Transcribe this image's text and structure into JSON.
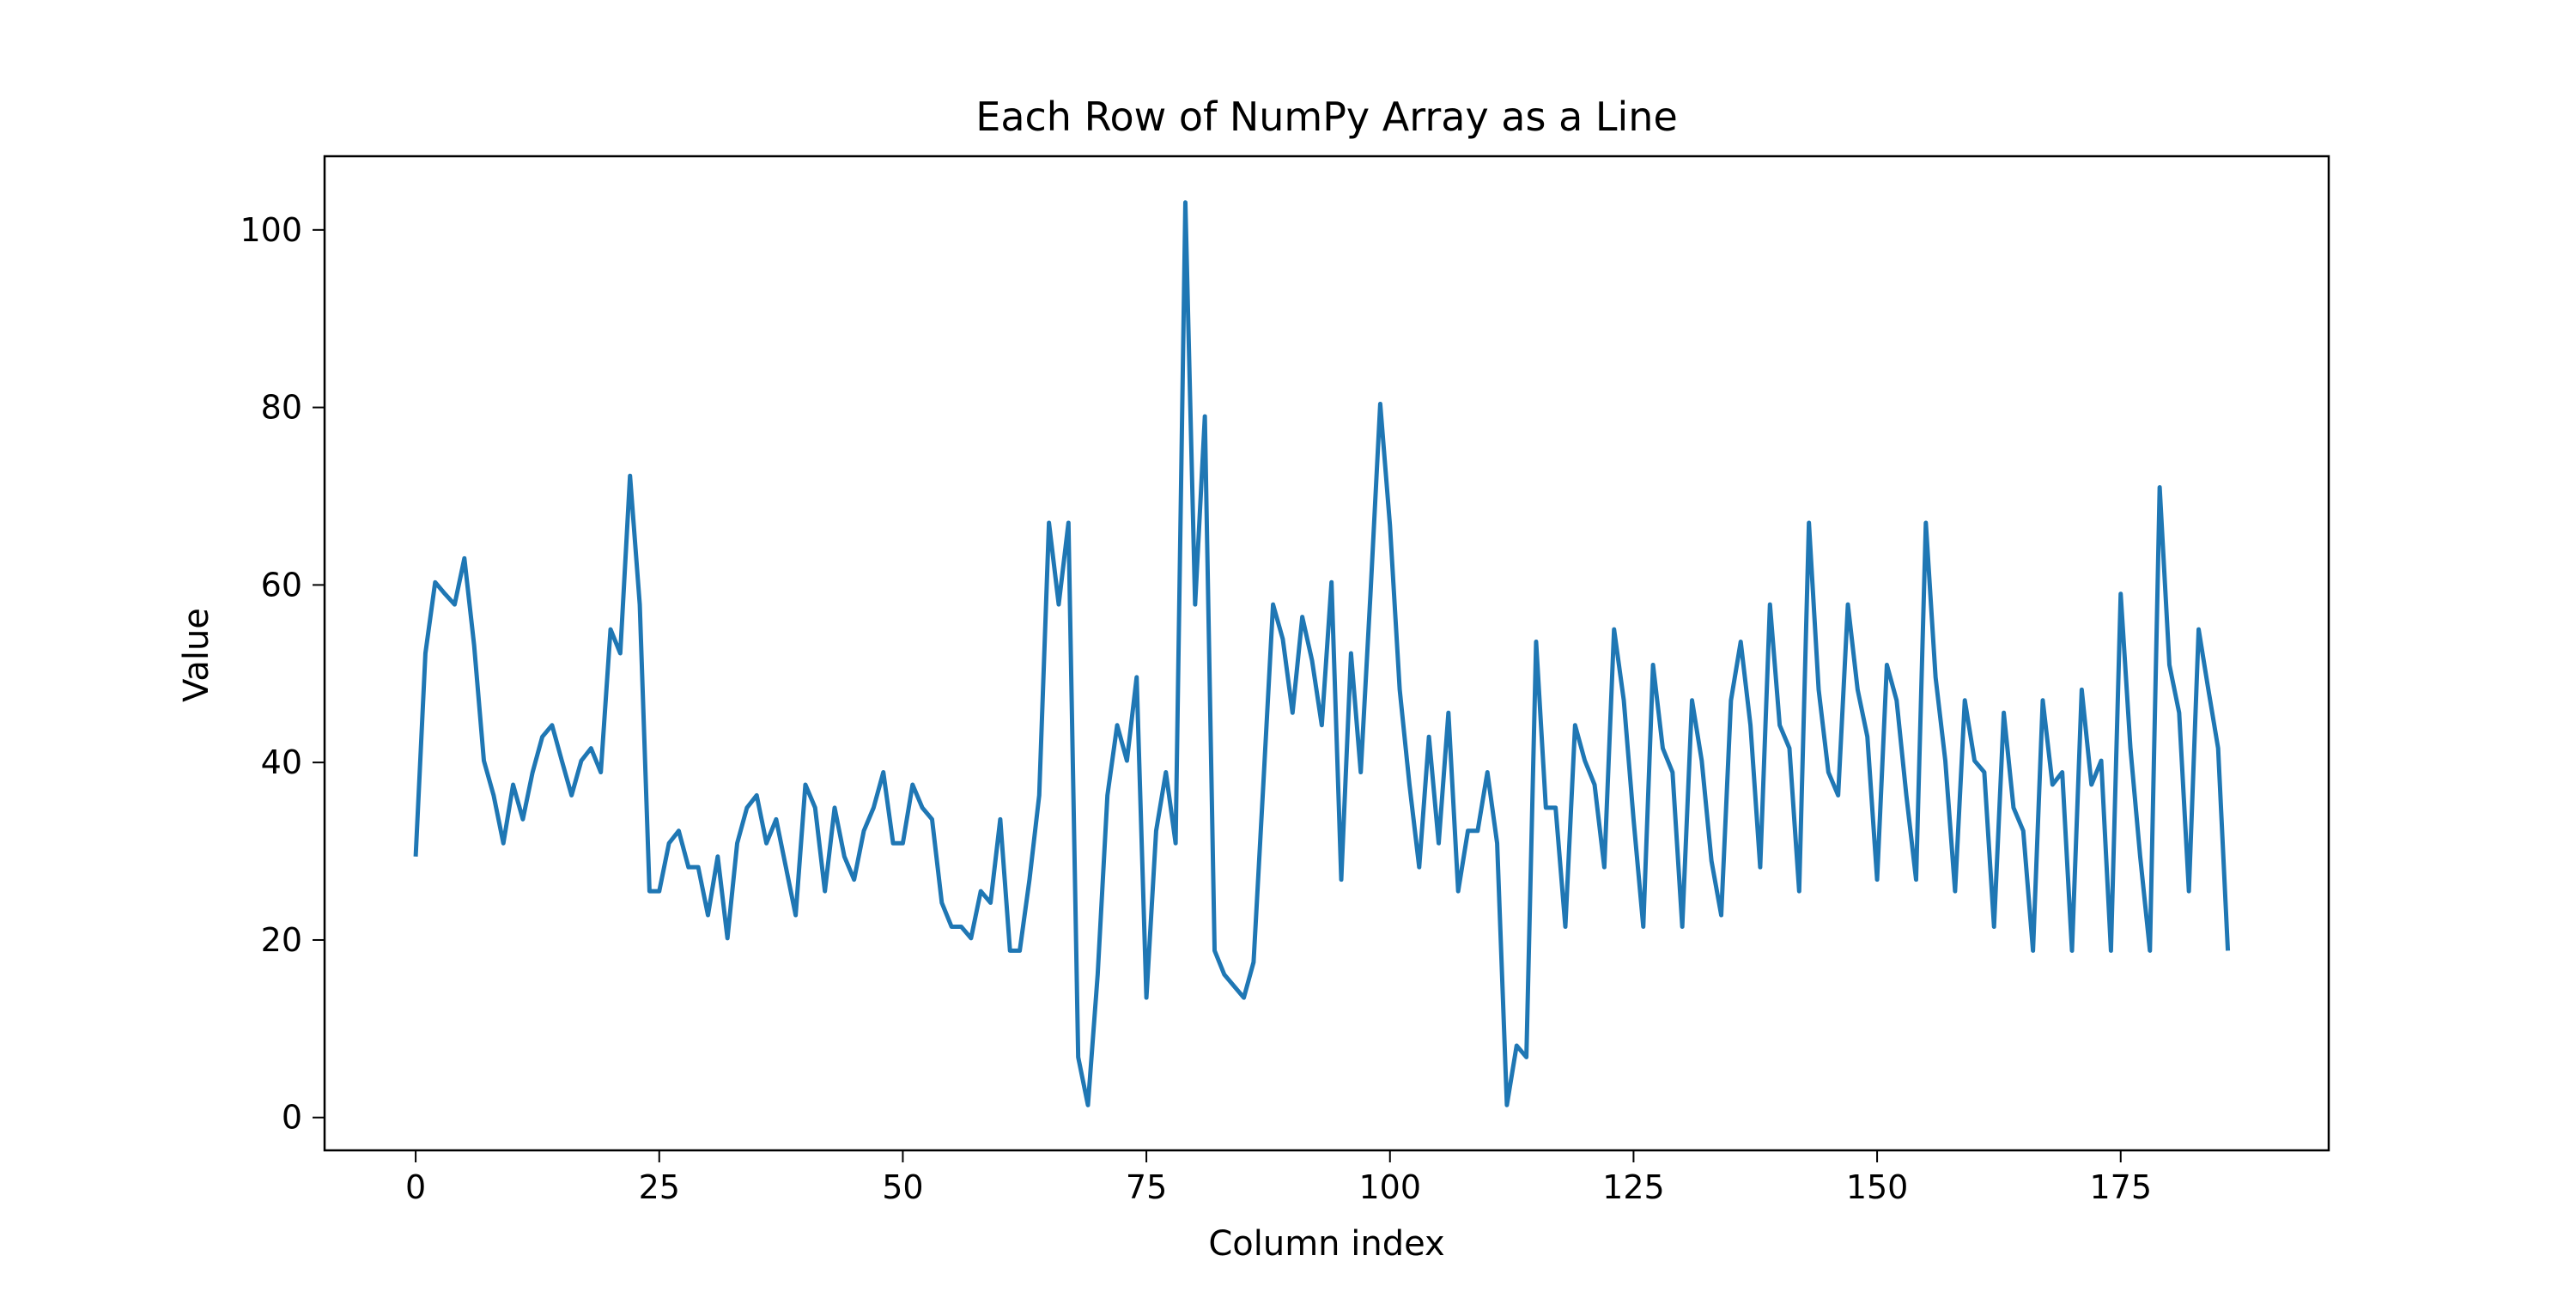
{
  "chart_data": {
    "type": "line",
    "title": "Each Row of NumPy Array as a Line",
    "xlabel": "Column index",
    "ylabel": "Value",
    "xlim": [
      -9.35,
      196.35
    ],
    "ylim": [
      -3.7,
      108.3
    ],
    "xticks": [
      0,
      25,
      50,
      75,
      100,
      125,
      150,
      175
    ],
    "yticks": [
      0,
      20,
      40,
      60,
      80,
      100
    ],
    "grid": false,
    "legend": "none",
    "colors": {
      "series": "#1f77b4",
      "axes": "#000000",
      "background": "#ffffff"
    },
    "series": [
      {
        "x": [
          0,
          1,
          2,
          3,
          4,
          5,
          6,
          7,
          8,
          9,
          10,
          11,
          12,
          13,
          14,
          15,
          16,
          17,
          18,
          19,
          20,
          21,
          22,
          23,
          24,
          25,
          26,
          27,
          28,
          29,
          30,
          31,
          32,
          33,
          34,
          35,
          36,
          37,
          38,
          39,
          40,
          41,
          42,
          43,
          44,
          45,
          46,
          47,
          48,
          49,
          50,
          51,
          52,
          53,
          54,
          55,
          56,
          57,
          58,
          59,
          60,
          61,
          62,
          63,
          64,
          65,
          66,
          67,
          68,
          69,
          70,
          71,
          72,
          73,
          74,
          75,
          76,
          77,
          78,
          79,
          80,
          81,
          82,
          83,
          84,
          85,
          86,
          87,
          88,
          89,
          90,
          91,
          92,
          93,
          94,
          95,
          96,
          97,
          98,
          99,
          100,
          101,
          102,
          103,
          104,
          105,
          106,
          107,
          108,
          109,
          110,
          111,
          112,
          113,
          114,
          115,
          116,
          117,
          118,
          119,
          120,
          121,
          122,
          123,
          124,
          125,
          126,
          127,
          128,
          129,
          130,
          131,
          132,
          133,
          134,
          135,
          136,
          137,
          138,
          139,
          140,
          141,
          142,
          143,
          144,
          145,
          146,
          147,
          148,
          149,
          150,
          151,
          152,
          153,
          154,
          155,
          156,
          157,
          158,
          159,
          160,
          161,
          162,
          163,
          164,
          165,
          166,
          167,
          168,
          169,
          170,
          171,
          172,
          173,
          174,
          175,
          176,
          177,
          178,
          179,
          180,
          181,
          182,
          183,
          184,
          185,
          186
        ],
        "values": [
          29.4,
          52.3,
          60.3,
          59.0,
          57.8,
          63.0,
          53.2,
          40.2,
          36.3,
          30.9,
          37.5,
          33.6,
          38.9,
          42.9,
          44.2,
          40.2,
          36.3,
          40.2,
          41.6,
          38.9,
          55.0,
          52.3,
          72.3,
          57.8,
          25.5,
          25.5,
          30.9,
          32.3,
          28.2,
          28.2,
          22.8,
          29.4,
          20.2,
          30.9,
          34.9,
          36.3,
          30.9,
          33.6,
          28.2,
          22.8,
          37.5,
          34.9,
          25.5,
          34.9,
          29.4,
          26.8,
          32.3,
          34.9,
          38.9,
          30.9,
          30.9,
          37.5,
          34.9,
          33.6,
          24.2,
          21.5,
          21.5,
          20.2,
          25.5,
          24.2,
          33.6,
          18.8,
          18.8,
          26.8,
          36.3,
          67.0,
          57.8,
          67.0,
          6.8,
          1.4,
          16.1,
          36.3,
          44.2,
          40.2,
          49.6,
          13.5,
          32.3,
          38.9,
          30.9,
          103.1,
          57.8,
          79.0,
          18.8,
          16.1,
          14.8,
          13.5,
          17.5,
          37.5,
          57.8,
          53.9,
          45.6,
          56.4,
          51.5,
          44.2,
          60.3,
          26.8,
          52.3,
          38.9,
          59.0,
          80.4,
          66.7,
          48.2,
          37.5,
          28.2,
          42.9,
          30.9,
          45.6,
          25.5,
          32.3,
          32.3,
          38.9,
          30.9,
          1.4,
          8.1,
          6.8,
          53.6,
          34.9,
          34.9,
          21.5,
          44.2,
          40.2,
          37.5,
          28.2,
          55.0,
          47.0,
          33.6,
          21.5,
          51.0,
          41.6,
          38.9,
          21.5,
          47.0,
          40.2,
          28.9,
          22.8,
          47.0,
          53.6,
          44.2,
          28.2,
          57.8,
          44.2,
          41.6,
          25.5,
          67.0,
          48.2,
          38.9,
          36.3,
          57.8,
          48.2,
          42.9,
          26.8,
          51.0,
          47.0,
          36.3,
          26.8,
          67.0,
          49.6,
          40.2,
          25.5,
          47.0,
          40.2,
          38.9,
          21.5,
          45.6,
          34.9,
          32.3,
          18.8,
          47.0,
          37.5,
          38.9,
          18.8,
          48.2,
          37.5,
          40.2,
          18.8,
          59.0,
          41.6,
          29.4,
          18.8,
          71.0,
          51.0,
          45.6,
          25.5,
          55.0,
          48.2,
          41.6,
          18.8
        ]
      }
    ]
  }
}
